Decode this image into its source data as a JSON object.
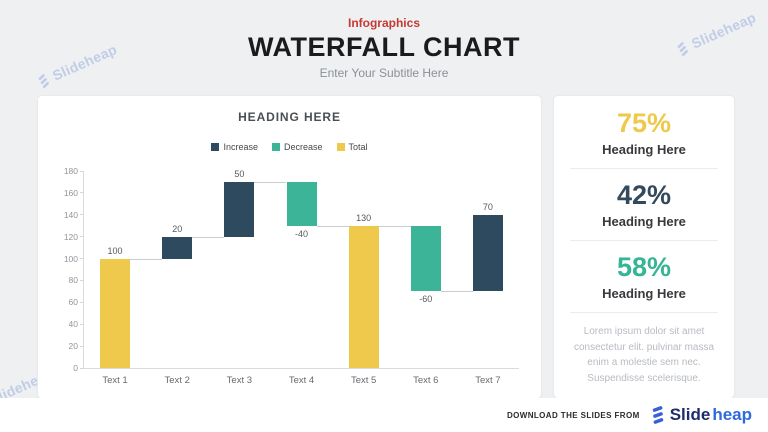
{
  "header": {
    "eyebrow": "Infographics",
    "title": "WATERFALL CHART",
    "subtitle": "Enter Your Subtitle Here"
  },
  "watermark": {
    "text": "Slideheap"
  },
  "chart": {
    "heading": "HEADING HERE",
    "legend": [
      {
        "label": "Increase",
        "color": "#2e4a5e"
      },
      {
        "label": "Decrease",
        "color": "#3cb498"
      },
      {
        "label": "Total",
        "color": "#eec94b"
      }
    ]
  },
  "chart_data": {
    "type": "bar",
    "subtype": "waterfall",
    "title": "HEADING HERE",
    "categories": [
      "Text 1",
      "Text 2",
      "Text 3",
      "Text 4",
      "Text 5",
      "Text 6",
      "Text 7"
    ],
    "steps": [
      {
        "category": "Text 1",
        "type": "total",
        "value": 100,
        "label": "100"
      },
      {
        "category": "Text 2",
        "type": "increase",
        "value": 20,
        "label": "20"
      },
      {
        "category": "Text 3",
        "type": "increase",
        "value": 50,
        "label": "50"
      },
      {
        "category": "Text 4",
        "type": "decrease",
        "value": -40,
        "label": "-40"
      },
      {
        "category": "Text 5",
        "type": "total",
        "value": 130,
        "label": "130"
      },
      {
        "category": "Text 6",
        "type": "decrease",
        "value": -60,
        "label": "-60"
      },
      {
        "category": "Text 7",
        "type": "increase",
        "value": 70,
        "label": "70"
      }
    ],
    "ylim": [
      0,
      180
    ],
    "ytick_step": 20,
    "grid": false,
    "legend_position": "top",
    "colors": {
      "increase": "#2e4a5e",
      "decrease": "#3cb498",
      "total": "#eec94b"
    }
  },
  "stats": [
    {
      "percent": "75%",
      "heading": "Heading Here",
      "color": "#eec94b"
    },
    {
      "percent": "42%",
      "heading": "Heading Here",
      "color": "#33495c"
    },
    {
      "percent": "58%",
      "heading": "Heading Here",
      "color": "#36b496"
    }
  ],
  "description": "Lorem ipsum dolor sit amet consectetur elit. pulvinar massa enim a molestie sem nec. Suspendisse  scelerisque.",
  "footer": {
    "text": "DOWNLOAD THE SLIDES FROM",
    "brand_slide": "Slide",
    "brand_heap": "heap"
  }
}
